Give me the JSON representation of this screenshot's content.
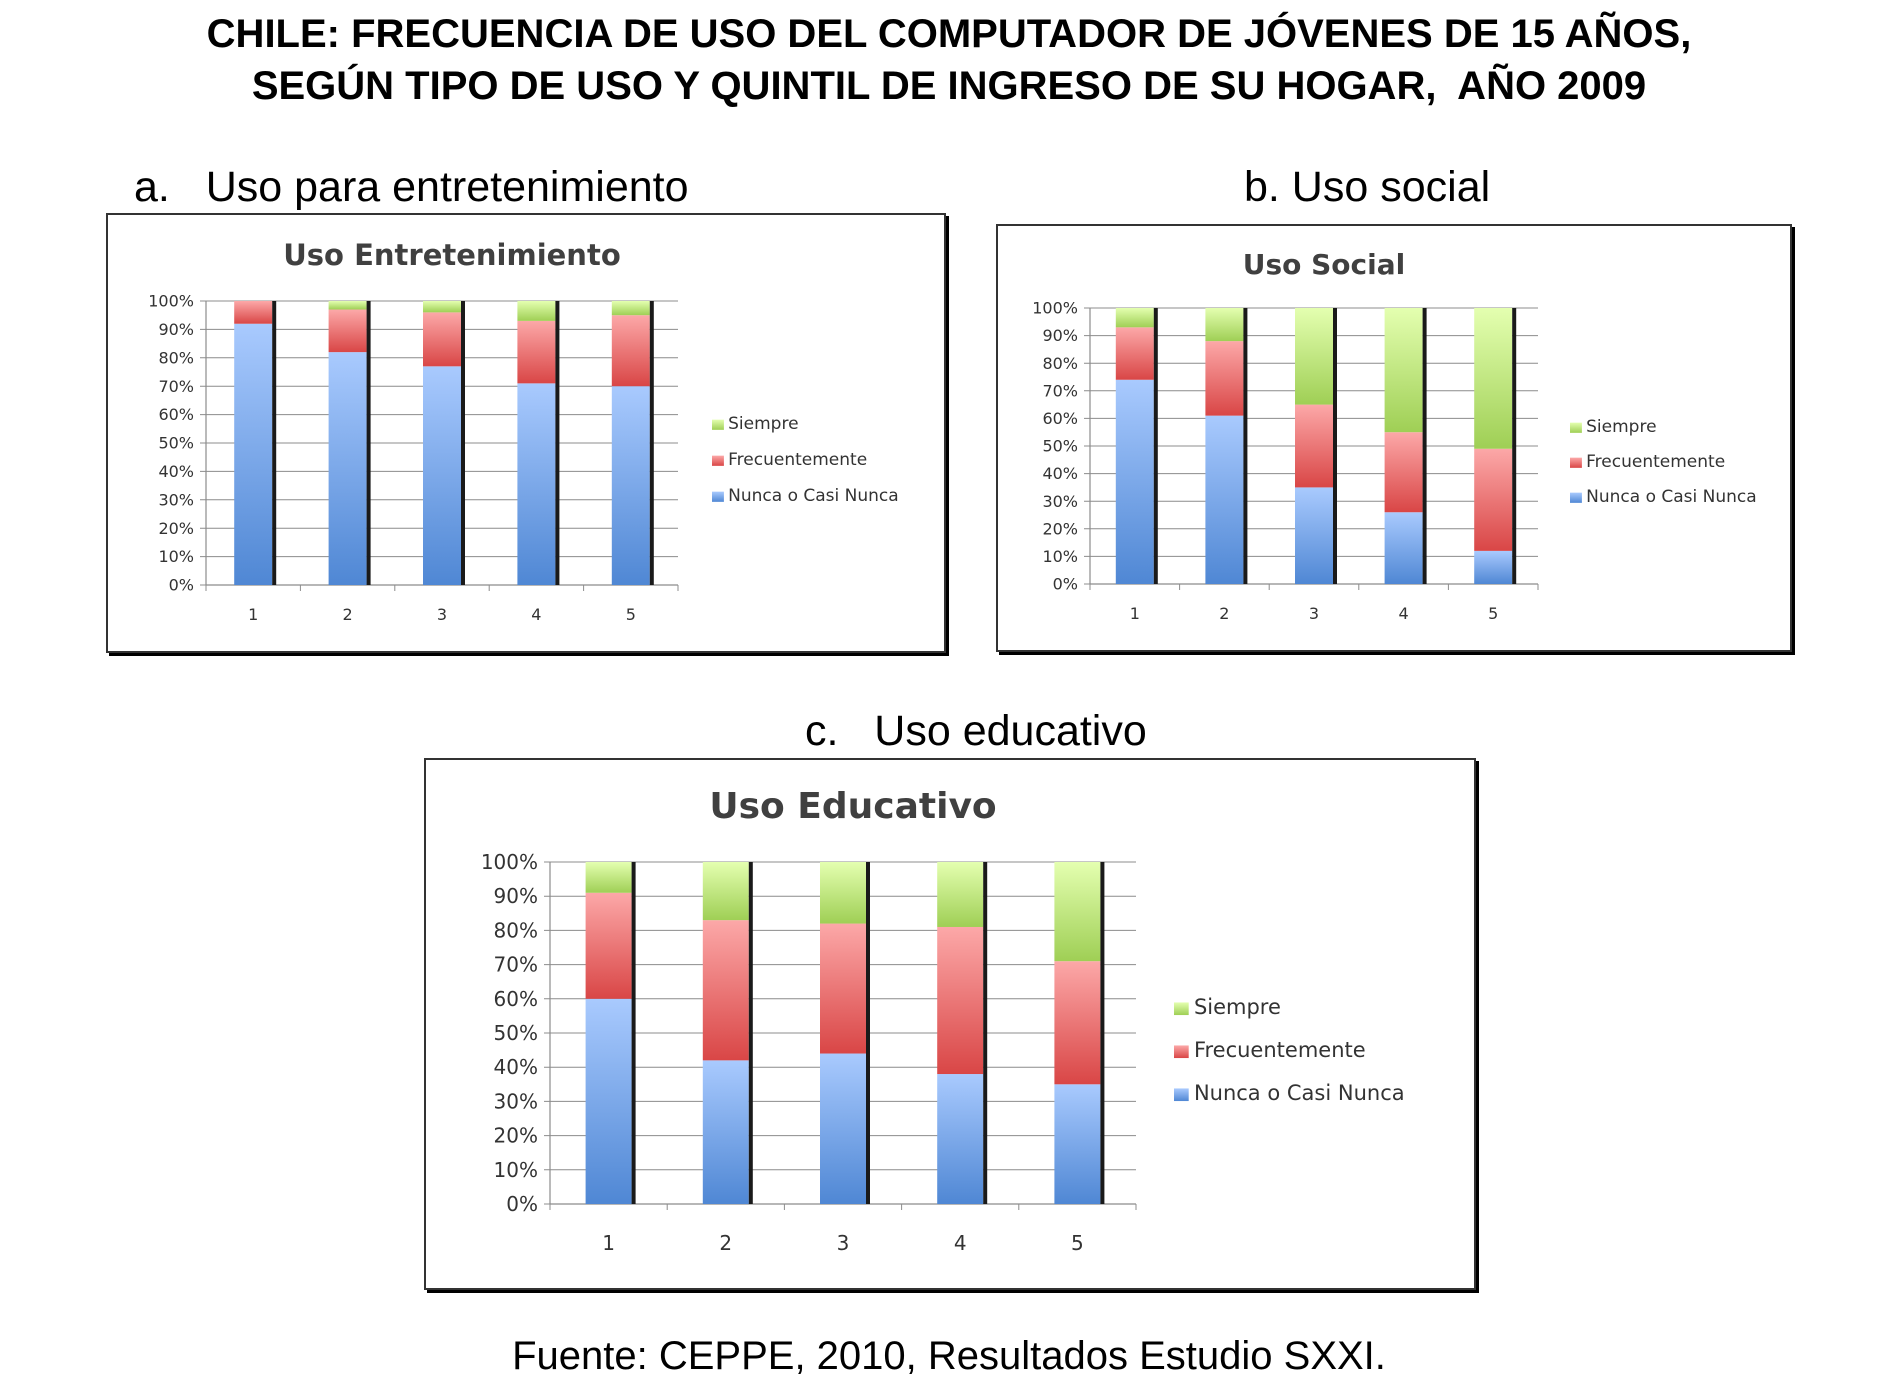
{
  "page": {
    "title_line1": "CHILE: FRECUENCIA DE USO DEL COMPUTADOR DE JÓVENES DE 15 AÑOS,",
    "title_line2": "SEGÚN TIPO DE USO Y QUINTIL DE INGRESO DE SU HOGAR,  AÑO 2009",
    "caption_a": "a.   Uso para entretenimiento",
    "caption_b": "b. Uso social",
    "caption_c": "c.   Uso educativo",
    "source": "Fuente: CEPPE, 2010, Resultados Estudio SXXI."
  },
  "colors": {
    "nunca_top": "#a9cafe",
    "nunca_bottom": "#4f87d4",
    "frec_top": "#fca8a8",
    "frec_bottom": "#d94646",
    "siempre_top": "#e4ffb0",
    "siempre_bottom": "#9fcf55",
    "grid": "#8c8c8c",
    "title_text": "#404040"
  },
  "chart_data": [
    {
      "type": "bar",
      "stacked": true,
      "title": "Uso Entretenimiento",
      "categories": [
        "1",
        "2",
        "3",
        "4",
        "5"
      ],
      "y_ticks": [
        "0%",
        "10%",
        "20%",
        "30%",
        "40%",
        "50%",
        "60%",
        "70%",
        "80%",
        "90%",
        "100%"
      ],
      "ylim": [
        0,
        100
      ],
      "grid": true,
      "legend_position": "right",
      "series": [
        {
          "name": "Nunca o Casi Nunca",
          "values": [
            92,
            82,
            77,
            71,
            70
          ]
        },
        {
          "name": "Frecuentemente",
          "values": [
            8,
            15,
            19,
            22,
            25
          ]
        },
        {
          "name": "Siempre",
          "values": [
            0,
            3,
            4,
            7,
            5
          ]
        }
      ]
    },
    {
      "type": "bar",
      "stacked": true,
      "title": "Uso Social",
      "categories": [
        "1",
        "2",
        "3",
        "4",
        "5"
      ],
      "y_ticks": [
        "0%",
        "10%",
        "20%",
        "30%",
        "40%",
        "50%",
        "60%",
        "70%",
        "80%",
        "90%",
        "100%"
      ],
      "ylim": [
        0,
        100
      ],
      "grid": true,
      "legend_position": "right",
      "series": [
        {
          "name": "Nunca o Casi Nunca",
          "values": [
            74,
            61,
            35,
            26,
            12
          ]
        },
        {
          "name": "Frecuentemente",
          "values": [
            19,
            27,
            30,
            29,
            37
          ]
        },
        {
          "name": "Siempre",
          "values": [
            7,
            12,
            35,
            45,
            51
          ]
        }
      ]
    },
    {
      "type": "bar",
      "stacked": true,
      "title": "Uso Educativo",
      "categories": [
        "1",
        "2",
        "3",
        "4",
        "5"
      ],
      "y_ticks": [
        "0%",
        "10%",
        "20%",
        "30%",
        "40%",
        "50%",
        "60%",
        "70%",
        "80%",
        "90%",
        "100%"
      ],
      "ylim": [
        0,
        100
      ],
      "grid": true,
      "legend_position": "right",
      "series": [
        {
          "name": "Nunca o Casi Nunca",
          "values": [
            60,
            42,
            44,
            38,
            35
          ]
        },
        {
          "name": "Frecuentemente",
          "values": [
            31,
            41,
            38,
            43,
            36
          ]
        },
        {
          "name": "Siempre",
          "values": [
            9,
            17,
            18,
            19,
            29
          ]
        }
      ]
    }
  ]
}
